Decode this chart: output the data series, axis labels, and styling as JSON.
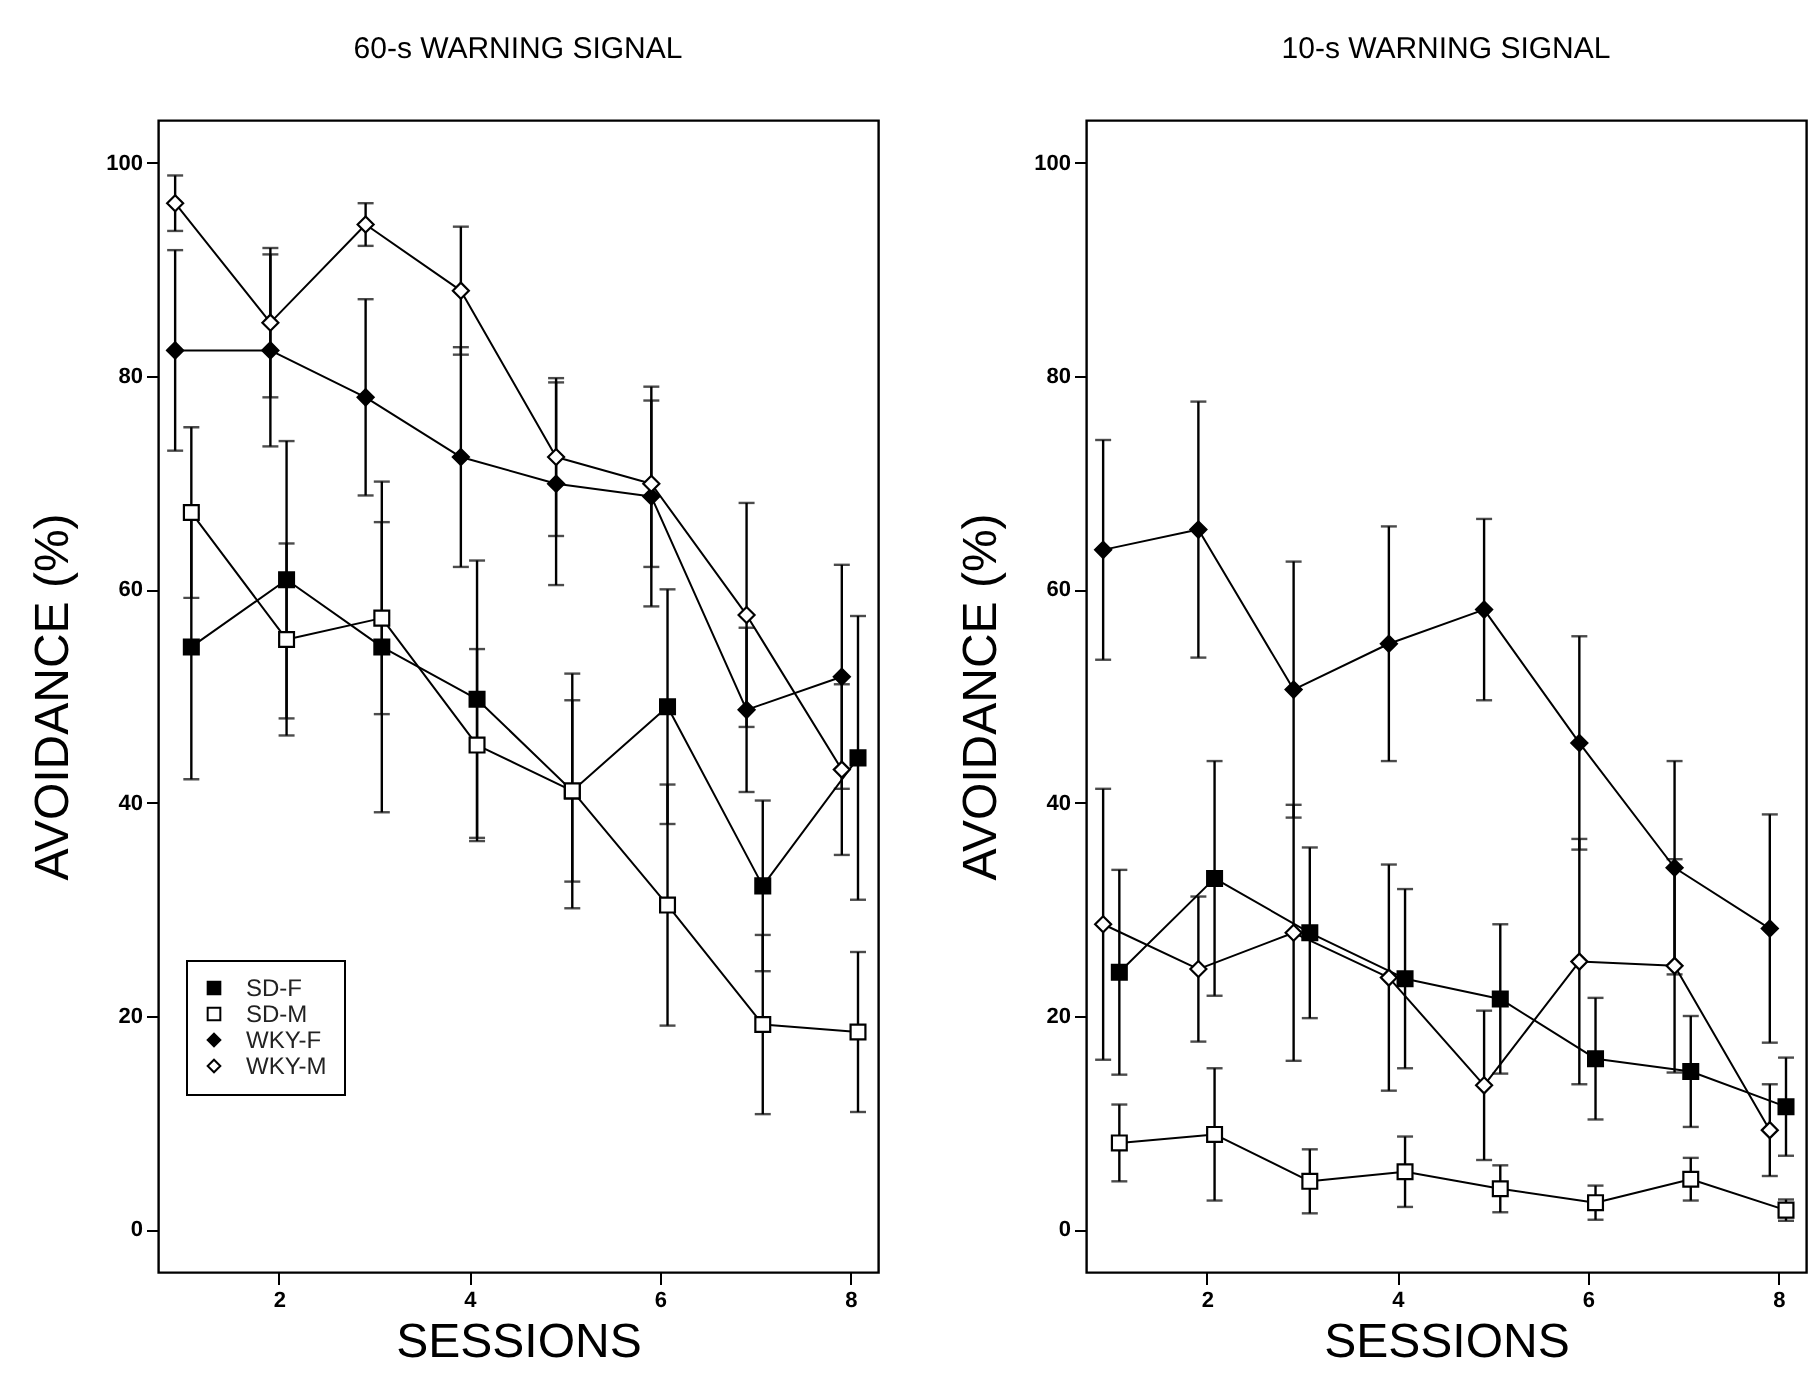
{
  "chart_data": [
    {
      "type": "line",
      "title": "60-s WARNING SIGNAL",
      "xlabel": "SESSIONS",
      "ylabel": "AVOIDANCE (%)",
      "xlim": [
        0.73,
        8.29
      ],
      "xticks": [
        2,
        4,
        6,
        8
      ],
      "ylim": [
        -4,
        104
      ],
      "yticks": [
        0,
        20,
        40,
        60,
        80,
        100
      ],
      "legend": "bottom left",
      "line_style": "solid",
      "series": [
        {
          "name": "SD-F",
          "color": "#000000",
          "marker": "square",
          "x": [
            1.08,
            2.08,
            3.08,
            4.08,
            5.08,
            6.08,
            7.08,
            8.08
          ],
          "values": [
            54.6,
            60.9,
            54.6,
            49.7,
            41.1,
            49.0,
            32.2,
            44.2
          ],
          "errors": [
            12.4,
            13,
            15.5,
            13,
            11,
            11,
            8,
            13.3
          ]
        },
        {
          "name": "SD-M",
          "color": "#ffffff",
          "marker": "square",
          "x": [
            1.08,
            2.08,
            3.08,
            4.08,
            5.08,
            6.08,
            7.08,
            8.08
          ],
          "values": [
            67.2,
            55.3,
            57.3,
            45.4,
            41.1,
            30.4,
            19.2,
            18.5
          ],
          "errors": [
            8,
            9,
            9,
            9,
            8.5,
            11.3,
            8.4,
            7.5
          ]
        },
        {
          "name": "WKY-F",
          "color": "#000000",
          "marker": "diamond",
          "x": [
            0.91,
            1.91,
            2.91,
            3.91,
            4.91,
            5.91,
            6.91,
            7.91
          ],
          "values": [
            82.4,
            82.4,
            78.0,
            72.4,
            69.9,
            68.7,
            48.7,
            51.8
          ],
          "errors": [
            9.4,
            9,
            9.2,
            10.3,
            9.5,
            10.3,
            7.7,
            10.5
          ]
        },
        {
          "name": "WKY-M",
          "color": "#ffffff",
          "marker": "diamond",
          "x": [
            0.91,
            1.91,
            2.91,
            3.91,
            4.91,
            5.91,
            6.91,
            7.91
          ],
          "values": [
            96.2,
            85.0,
            94.2,
            88.0,
            72.4,
            69.9,
            57.6,
            43.1
          ],
          "errors": [
            2.6,
            7,
            2,
            6,
            7.4,
            7.8,
            10.5,
            8
          ]
        }
      ]
    },
    {
      "type": "line",
      "title": "10-s WARNING SIGNAL",
      "xlabel": "SESSIONS",
      "ylabel": "AVOIDANCE (%)",
      "xlim": [
        0.73,
        8.29
      ],
      "xticks": [
        2,
        4,
        6,
        8
      ],
      "ylim": [
        -4,
        104
      ],
      "yticks": [
        0,
        20,
        40,
        60,
        80,
        100
      ],
      "line_style": "solid",
      "series": [
        {
          "color": "#000000",
          "marker": "square",
          "x": [
            1.08,
            2.08,
            3.08,
            4.08,
            5.08,
            6.08,
            7.08,
            8.08
          ],
          "values": [
            24.1,
            32.9,
            27.8,
            23.5,
            21.6,
            16.0,
            14.8,
            11.5
          ],
          "errors": [
            9.6,
            11,
            8,
            8.4,
            7,
            5.7,
            5.2,
            4.6
          ]
        },
        {
          "color": "#ffffff",
          "marker": "square",
          "x": [
            1.08,
            2.08,
            3.08,
            4.08,
            5.08,
            6.08,
            7.08,
            8.08
          ],
          "values": [
            8.1,
            8.9,
            4.5,
            5.4,
            3.8,
            2.5,
            4.7,
            1.8
          ],
          "errors": [
            3.6,
            6.2,
            3,
            3.3,
            2.2,
            1.6,
            2,
            1
          ]
        },
        {
          "color": "#000000",
          "marker": "diamond",
          "x": [
            0.91,
            1.91,
            2.91,
            3.91,
            4.91,
            5.91,
            6.91,
            7.91
          ],
          "values": [
            63.7,
            65.6,
            50.6,
            54.9,
            58.1,
            45.6,
            33.9,
            28.2
          ],
          "errors": [
            10.3,
            12,
            12,
            11,
            8.5,
            10,
            10,
            10.7
          ]
        },
        {
          "color": "#ffffff",
          "marker": "diamond",
          "x": [
            0.91,
            1.91,
            2.91,
            3.91,
            4.91,
            5.91,
            6.91,
            7.91
          ],
          "values": [
            28.6,
            24.4,
            27.8,
            23.6,
            13.5,
            25.1,
            24.7,
            9.3
          ],
          "errors": [
            12.7,
            6.8,
            12,
            10.6,
            7,
            11.5,
            10,
            4.3
          ]
        }
      ]
    }
  ]
}
